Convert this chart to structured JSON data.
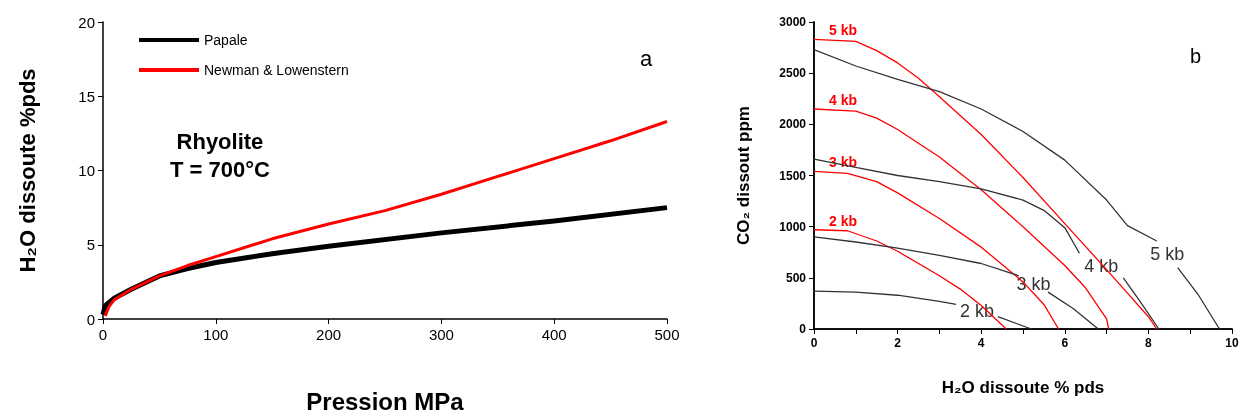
{
  "chart_data": [
    {
      "type": "line",
      "xlabel": "Pression MPa",
      "ylabel": "H₂O dissoute %pds",
      "annotations": [
        "Rhyolite\nT = 700°C",
        "a"
      ],
      "xlim": [
        0,
        500
      ],
      "ylim": [
        0,
        20
      ],
      "xticks": [
        0,
        100,
        200,
        300,
        400,
        500
      ],
      "yticks": [
        0,
        5,
        10,
        15,
        20
      ],
      "grid": false,
      "legend": "top left",
      "marker": "none",
      "line_style": "solid",
      "series": [
        {
          "name": "Papale",
          "color": "#000000",
          "x": [
            0,
            2,
            10,
            25,
            50,
            75,
            100,
            150,
            200,
            300,
            400,
            500
          ],
          "values": [
            0.3,
            0.9,
            1.4,
            2.0,
            2.9,
            3.4,
            3.8,
            4.4,
            4.9,
            5.8,
            6.6,
            7.5
          ]
        },
        {
          "name": "Newman & Lowenstern",
          "color": "#ff0000",
          "x": [
            2,
            5,
            10,
            25,
            50,
            75,
            100,
            150,
            200,
            250,
            300,
            350,
            400,
            450,
            500
          ],
          "values": [
            0.2,
            0.8,
            1.3,
            2.0,
            2.9,
            3.6,
            4.2,
            5.4,
            6.4,
            7.3,
            8.4,
            9.6,
            10.8,
            12.0,
            13.3
          ]
        }
      ]
    },
    {
      "type": "line",
      "xlabel": "H₂O dissoute % pds",
      "ylabel": "CO₂ dissout ppm",
      "annotations": [
        "b"
      ],
      "xlim": [
        0,
        10
      ],
      "ylim": [
        0,
        3000
      ],
      "xticks": [
        0,
        {
          "value": 1,
          "label": null
        },
        2,
        {
          "value": 3,
          "label": null
        },
        4,
        {
          "value": 5,
          "label": null
        },
        6,
        {
          "value": 7,
          "label": null
        },
        8,
        {
          "value": 9,
          "label": null
        },
        10
      ],
      "yticks": [
        0,
        500,
        1000,
        1500,
        2000,
        2500,
        3000
      ],
      "grid": false,
      "legend": false,
      "marker": "none",
      "line_style": "solid",
      "series": [
        {
          "name": "5 kb",
          "color": "#ff0000",
          "x": [
            0,
            1,
            1.5,
            2,
            2.5,
            3,
            4,
            5,
            6,
            7,
            7.5,
            8,
            8.2
          ],
          "values": [
            2830,
            2810,
            2720,
            2600,
            2450,
            2270,
            1900,
            1480,
            1030,
            580,
            350,
            120,
            0
          ]
        },
        {
          "name": "4 kb",
          "color": "#ff0000",
          "x": [
            0,
            1,
            1.5,
            2,
            3,
            4,
            5,
            6,
            6.5,
            7,
            7.05
          ],
          "values": [
            2150,
            2130,
            2060,
            1950,
            1680,
            1360,
            1000,
            620,
            400,
            100,
            0
          ]
        },
        {
          "name": "3 kb",
          "color": "#ff0000",
          "x": [
            0,
            0.8,
            1.5,
            2,
            3,
            4,
            4.5,
            5,
            5.5,
            5.85
          ],
          "values": [
            1540,
            1520,
            1440,
            1330,
            1080,
            800,
            630,
            460,
            240,
            0
          ]
        },
        {
          "name": "2 kb",
          "color": "#ff0000",
          "x": [
            0,
            0.8,
            1.5,
            2,
            3,
            3.5,
            4,
            4.6
          ],
          "values": [
            970,
            960,
            860,
            760,
            520,
            390,
            230,
            0
          ]
        },
        {
          "name": "5 kb",
          "color": "#333333",
          "x": [
            0,
            1,
            2,
            3,
            4,
            5,
            6,
            7,
            7.5,
            8.2,
            8.4,
            8.7,
            9.2,
            9.7
          ],
          "values": [
            2730,
            2570,
            2440,
            2320,
            2150,
            1930,
            1650,
            1260,
            1010,
            860,
            null,
            600,
            330,
            0
          ]
        },
        {
          "name": "4 kb",
          "color": "#333333",
          "x": [
            0,
            1,
            2,
            3,
            4,
            5,
            5.5,
            6,
            6.35,
            6.8,
            7.4,
            7.8,
            8.25
          ],
          "values": [
            1660,
            1580,
            1500,
            1440,
            1370,
            1260,
            1160,
            990,
            740,
            null,
            500,
            270,
            0
          ]
        },
        {
          "name": "3 kb",
          "color": "#333333",
          "x": [
            0,
            1,
            2,
            3,
            4,
            4.6,
            4.9,
            5.25,
            5.6,
            6.2,
            6.8
          ],
          "values": [
            900,
            850,
            790,
            720,
            640,
            560,
            520,
            null,
            360,
            200,
            0
          ]
        },
        {
          "name": "2 kb",
          "color": "#333333",
          "x": [
            0,
            1,
            2,
            3,
            3.4,
            3.9,
            4.4,
            5.2
          ],
          "values": [
            370,
            360,
            330,
            270,
            240,
            null,
            120,
            0
          ]
        }
      ]
    }
  ]
}
